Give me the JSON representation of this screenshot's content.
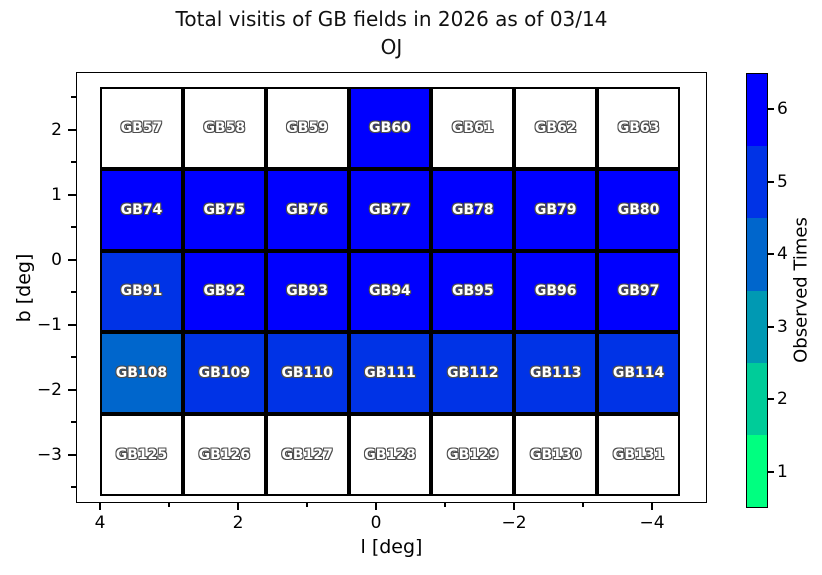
{
  "figure": {
    "title_line1": "Total visitis of GB fields in 2026 as of 03/14",
    "title_line2": "OJ"
  },
  "axes": {
    "xlabel": "l [deg]",
    "ylabel": "b [deg]",
    "x_ticks": [
      "4",
      "2",
      "0",
      "−2",
      "−4"
    ],
    "y_ticks": [
      "2",
      "1",
      "0",
      "−1",
      "−2",
      "−3"
    ]
  },
  "colorbar": {
    "label": "Observed Times",
    "tick_labels_top_to_bottom": [
      "6",
      "5",
      "4",
      "3",
      "2",
      "1"
    ],
    "band_colors_top_to_bottom": [
      "#0000ff",
      "#0033e6",
      "#0066cc",
      "#0099b3",
      "#00cc99",
      "#00ff80"
    ]
  },
  "chart_data": {
    "type": "heatmap",
    "title": "Total visitis of GB fields in 2026 as of 03/14 OJ",
    "xlabel": "l [deg]",
    "ylabel": "b [deg]",
    "colorbar_label": "Observed Times",
    "colorbar_range": [
      1,
      6
    ],
    "x_axis_reversed": true,
    "x_tick_values": [
      4,
      2,
      0,
      -2,
      -4
    ],
    "y_tick_values": [
      2,
      1,
      0,
      -1,
      -2,
      -3
    ],
    "l_centers": [
      3.4,
      2.2,
      1.0,
      -0.2,
      -1.4,
      -2.6,
      -3.8
    ],
    "b_centers": [
      2.05,
      0.8,
      -0.45,
      -1.7,
      -2.95
    ],
    "unobserved_color": "#ffffff",
    "value_colors": {
      "0": "#ffffff",
      "4": "#0066cc",
      "5": "#0033e6",
      "6": "#0000ff"
    },
    "rows": [
      {
        "fields": [
          "GB57",
          "GB58",
          "GB59",
          "GB60",
          "GB61",
          "GB62",
          "GB63"
        ],
        "observed": [
          0,
          0,
          0,
          6,
          0,
          0,
          0
        ]
      },
      {
        "fields": [
          "GB74",
          "GB75",
          "GB76",
          "GB77",
          "GB78",
          "GB79",
          "GB80"
        ],
        "observed": [
          6,
          6,
          6,
          6,
          6,
          6,
          6
        ]
      },
      {
        "fields": [
          "GB91",
          "GB92",
          "GB93",
          "GB94",
          "GB95",
          "GB96",
          "GB97"
        ],
        "observed": [
          5,
          6,
          6,
          6,
          6,
          6,
          6
        ]
      },
      {
        "fields": [
          "GB108",
          "GB109",
          "GB110",
          "GB111",
          "GB112",
          "GB113",
          "GB114"
        ],
        "observed": [
          4,
          5,
          5,
          5,
          5,
          5,
          5
        ]
      },
      {
        "fields": [
          "GB125",
          "GB126",
          "GB127",
          "GB128",
          "GB129",
          "GB130",
          "GB131"
        ],
        "observed": [
          0,
          0,
          0,
          0,
          0,
          0,
          0
        ]
      }
    ]
  }
}
